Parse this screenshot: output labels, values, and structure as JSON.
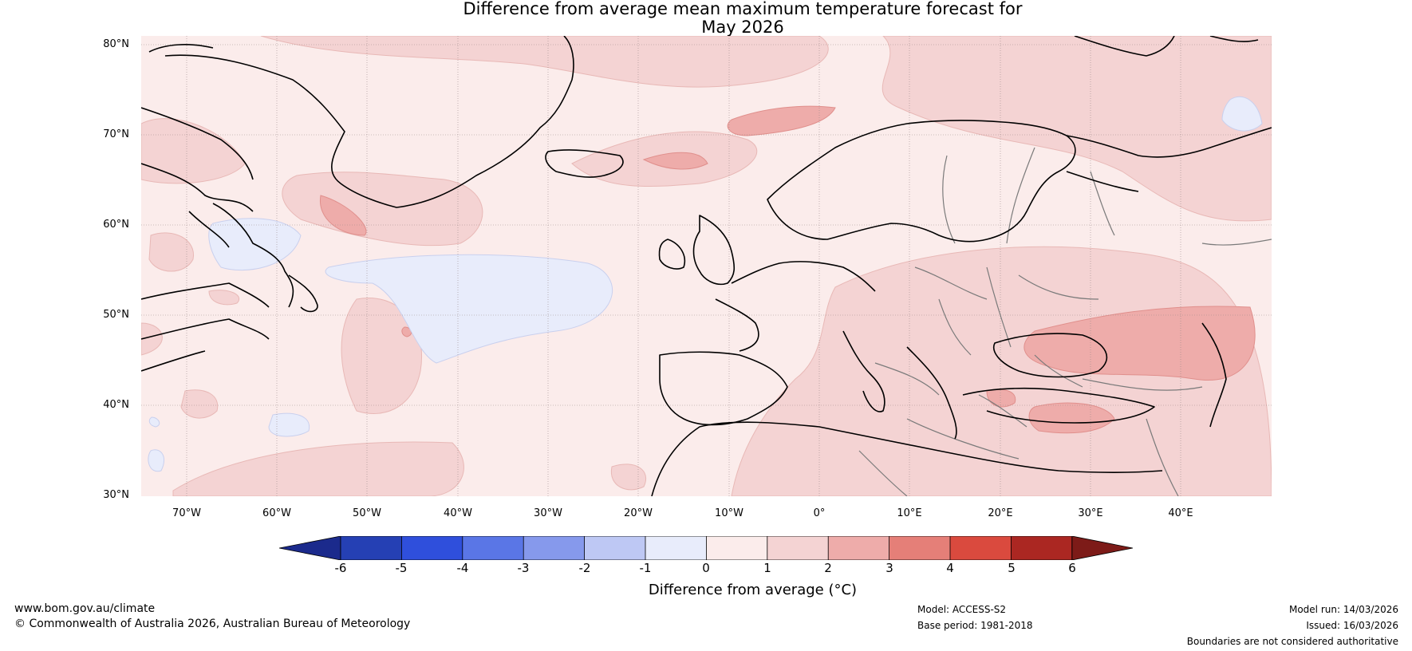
{
  "title": {
    "line1": "Difference from average mean maximum temperature forecast for",
    "line2": "May 2026"
  },
  "map": {
    "lat_labels": [
      "80°N",
      "70°N",
      "60°N",
      "50°N",
      "40°N",
      "30°N"
    ],
    "lon_labels": [
      "70°W",
      "60°W",
      "50°W",
      "40°W",
      "30°W",
      "20°W",
      "10°W",
      "0°",
      "10°E",
      "20°E",
      "30°E",
      "40°E"
    ],
    "lat_range": [
      30,
      80
    ],
    "lon_range": [
      -75,
      50
    ]
  },
  "colorbar": {
    "label": "Difference from average (°C)",
    "ticks": [
      "-6",
      "-5",
      "-4",
      "-3",
      "-2",
      "-1",
      "0",
      "1",
      "2",
      "3",
      "4",
      "5",
      "6"
    ],
    "colors": [
      "#1b2a8c",
      "#2540b4",
      "#2f4fdc",
      "#5a76e6",
      "#8699ec",
      "#bec8f4",
      "#e8ecfb",
      "#fbeceb",
      "#f4d3d3",
      "#eeacaa",
      "#e57f78",
      "#da4a3e",
      "#ab2722",
      "#7d1b18"
    ]
  },
  "footer": {
    "website": "www.bom.gov.au/climate",
    "copyright": "© Commonwealth of Australia 2026, Australian Bureau of Meteorology",
    "model": "Model: ACCESS-S2",
    "base_period": "Base period: 1981-2018",
    "model_run": "Model run: 14/03/2026",
    "issued": "Issued: 16/03/2026",
    "disclaimer": "Boundaries are not considered authoritative"
  }
}
